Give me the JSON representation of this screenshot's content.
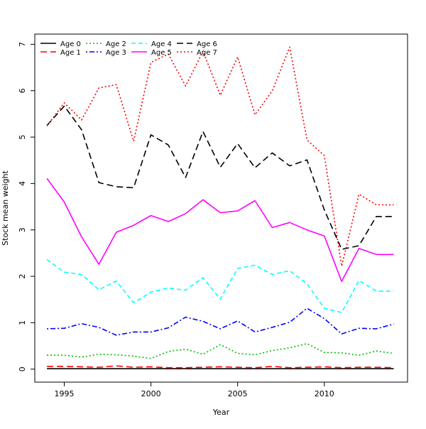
{
  "chart_data": {
    "type": "line",
    "title": "",
    "xlabel": "Year",
    "ylabel": "Stock mean weight",
    "xlim": [
      1993.3,
      2014.8
    ],
    "ylim": [
      -0.28,
      7.22
    ],
    "xticks": [
      1995,
      2000,
      2005,
      2010
    ],
    "yticks": [
      0,
      1,
      2,
      3,
      4,
      5,
      6,
      7
    ],
    "grid": false,
    "legend_position": "top-left",
    "x": [
      1994,
      1995,
      1996,
      1997,
      1998,
      1999,
      2000,
      2001,
      2002,
      2003,
      2004,
      2005,
      2006,
      2007,
      2008,
      2009,
      2010,
      2011,
      2012,
      2013,
      2014
    ],
    "series": [
      {
        "name": "Age 0",
        "color": "#000000",
        "dash": "solid",
        "values": [
          0.01,
          0.01,
          0.01,
          0.01,
          0.01,
          0.01,
          0.01,
          0.01,
          0.01,
          0.01,
          0.01,
          0.01,
          0.01,
          0.01,
          0.01,
          0.01,
          0.01,
          0.01,
          0.01,
          0.01,
          0.01
        ]
      },
      {
        "name": "Age 1",
        "color": "#ff0000",
        "dash": "longdash",
        "values": [
          0.06,
          0.06,
          0.05,
          0.04,
          0.07,
          0.04,
          0.05,
          0.03,
          0.03,
          0.04,
          0.05,
          0.04,
          0.03,
          0.06,
          0.03,
          0.04,
          0.05,
          0.03,
          0.04,
          0.04,
          0.03
        ]
      },
      {
        "name": "Age 2",
        "color": "#00bb00",
        "dash": "dotted",
        "values": [
          0.3,
          0.3,
          0.26,
          0.32,
          0.31,
          0.28,
          0.23,
          0.38,
          0.43,
          0.32,
          0.53,
          0.34,
          0.31,
          0.4,
          0.46,
          0.55,
          0.36,
          0.35,
          0.3,
          0.39,
          0.34
        ]
      },
      {
        "name": "Age 3",
        "color": "#0000ff",
        "dash": "dotdash",
        "values": [
          0.87,
          0.88,
          0.98,
          0.9,
          0.73,
          0.8,
          0.8,
          0.89,
          1.12,
          1.03,
          0.87,
          1.04,
          0.8,
          0.9,
          1.01,
          1.31,
          1.09,
          0.76,
          0.88,
          0.87,
          0.97
        ]
      },
      {
        "name": "Age 4",
        "color": "#00ffff",
        "dash": "dashed",
        "values": [
          2.36,
          2.09,
          2.04,
          1.71,
          1.9,
          1.43,
          1.66,
          1.75,
          1.7,
          1.97,
          1.51,
          2.17,
          2.24,
          2.04,
          2.12,
          1.84,
          1.31,
          1.22,
          1.91,
          1.68,
          1.68
        ]
      },
      {
        "name": "Age 5",
        "color": "#ff00ff",
        "dash": "solid",
        "values": [
          4.11,
          3.6,
          2.85,
          2.26,
          2.95,
          3.1,
          3.31,
          3.18,
          3.35,
          3.65,
          3.37,
          3.41,
          3.63,
          3.05,
          3.16,
          3.0,
          2.87,
          1.89,
          2.6,
          2.47,
          2.47
        ]
      },
      {
        "name": "Age 6",
        "color": "#000000",
        "dash": "longdash",
        "values": [
          5.25,
          5.67,
          5.16,
          4.02,
          3.93,
          3.91,
          5.05,
          4.83,
          4.13,
          5.12,
          4.35,
          4.86,
          4.34,
          4.66,
          4.38,
          4.51,
          3.43,
          2.58,
          2.66,
          3.29,
          3.29
        ]
      },
      {
        "name": "Age 7",
        "color": "#ff0000",
        "dash": "dotted",
        "values": [
          5.24,
          5.74,
          5.37,
          6.06,
          6.13,
          4.91,
          6.61,
          6.79,
          6.1,
          6.85,
          5.9,
          6.73,
          5.48,
          6.0,
          6.94,
          4.94,
          4.6,
          2.22,
          3.77,
          3.54,
          3.54
        ]
      }
    ]
  }
}
